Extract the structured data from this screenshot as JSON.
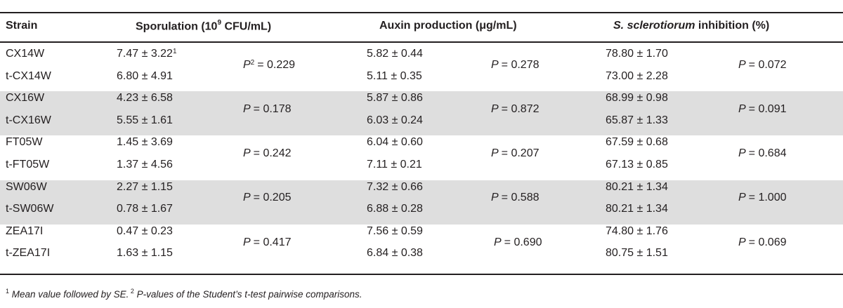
{
  "headers": {
    "strain": "Strain",
    "sporulation_pre": "Sporulation (10",
    "sporulation_sup": "9",
    "sporulation_post": " CFU/mL)",
    "auxin": "Auxin production (μg/mL)",
    "inhibition_italic": "S. sclerotiorum",
    "inhibition_rest": " inhibition (%)"
  },
  "rows": [
    {
      "strain": "CX14W",
      "spor": "7.47 ± 3.22",
      "spor_sup": "1",
      "auxin": "5.82 ± 0.44",
      "inhib": "78.80 ± 1.70"
    },
    {
      "strain": "t-CX14W",
      "spor": "6.80 ± 4.91",
      "spor_sup": "",
      "auxin": "5.11 ± 0.35",
      "inhib": "73.00 ± 2.28"
    },
    {
      "strain": "CX16W",
      "spor": "4.23 ± 6.58",
      "spor_sup": "",
      "auxin": "5.87 ± 0.86",
      "inhib": "68.99 ± 0.98"
    },
    {
      "strain": "t-CX16W",
      "spor": "5.55 ± 1.61",
      "spor_sup": "",
      "auxin": "6.03 ± 0.24",
      "inhib": "65.87 ± 1.33"
    },
    {
      "strain": "FT05W",
      "spor": "1.45 ± 3.69",
      "spor_sup": "",
      "auxin": "6.04 ± 0.60",
      "inhib": "67.59 ± 0.68"
    },
    {
      "strain": "t-FT05W",
      "spor": "1.37 ± 4.56",
      "spor_sup": "",
      "auxin": "7.11 ± 0.21",
      "inhib": "67.13 ± 0.85"
    },
    {
      "strain": "SW06W",
      "spor": "2.27 ± 1.15",
      "spor_sup": "",
      "auxin": "7.32 ± 0.66",
      "inhib": "80.21 ± 1.34"
    },
    {
      "strain": "t-SW06W",
      "spor": "0.78 ± 1.67",
      "spor_sup": "",
      "auxin": "6.88 ± 0.28",
      "inhib": "80.21 ± 1.34"
    },
    {
      "strain": "ZEA17I",
      "spor": "0.47 ± 0.23",
      "spor_sup": "",
      "auxin": "7.56 ± 0.59",
      "inhib": "74.80 ± 1.76"
    },
    {
      "strain": "t-ZEA17I",
      "spor": "1.63 ± 1.15",
      "spor_sup": "",
      "auxin": "6.84 ± 0.38",
      "inhib": "80.75 ± 1.51"
    }
  ],
  "pvalues": [
    {
      "spor_sup": "2",
      "spor": "= 0.229",
      "auxin": "= 0.278",
      "inhib": "= 0.072"
    },
    {
      "spor_sup": "",
      "spor": "= 0.178",
      "auxin": "= 0.872",
      "inhib": "= 0.091"
    },
    {
      "spor_sup": "",
      "spor": "= 0.242",
      "auxin": "= 0.207",
      "inhib": "= 0.684"
    },
    {
      "spor_sup": "",
      "spor": "= 0.205",
      "auxin": "= 0.588",
      "inhib": "= 1.000"
    },
    {
      "spor_sup": "",
      "spor": "= 0.417",
      "auxin": "= 0.690",
      "inhib": "= 0.069"
    }
  ],
  "p_label": "P",
  "footnote": {
    "sup1": "1",
    "text1": " Mean value followed by SE.",
    "sup2": " 2",
    "text2": " P-values of the Student’s t-test pairwise comparisons."
  },
  "colors": {
    "band": "#dedede",
    "text": "#231f20",
    "rule": "#231f20"
  }
}
